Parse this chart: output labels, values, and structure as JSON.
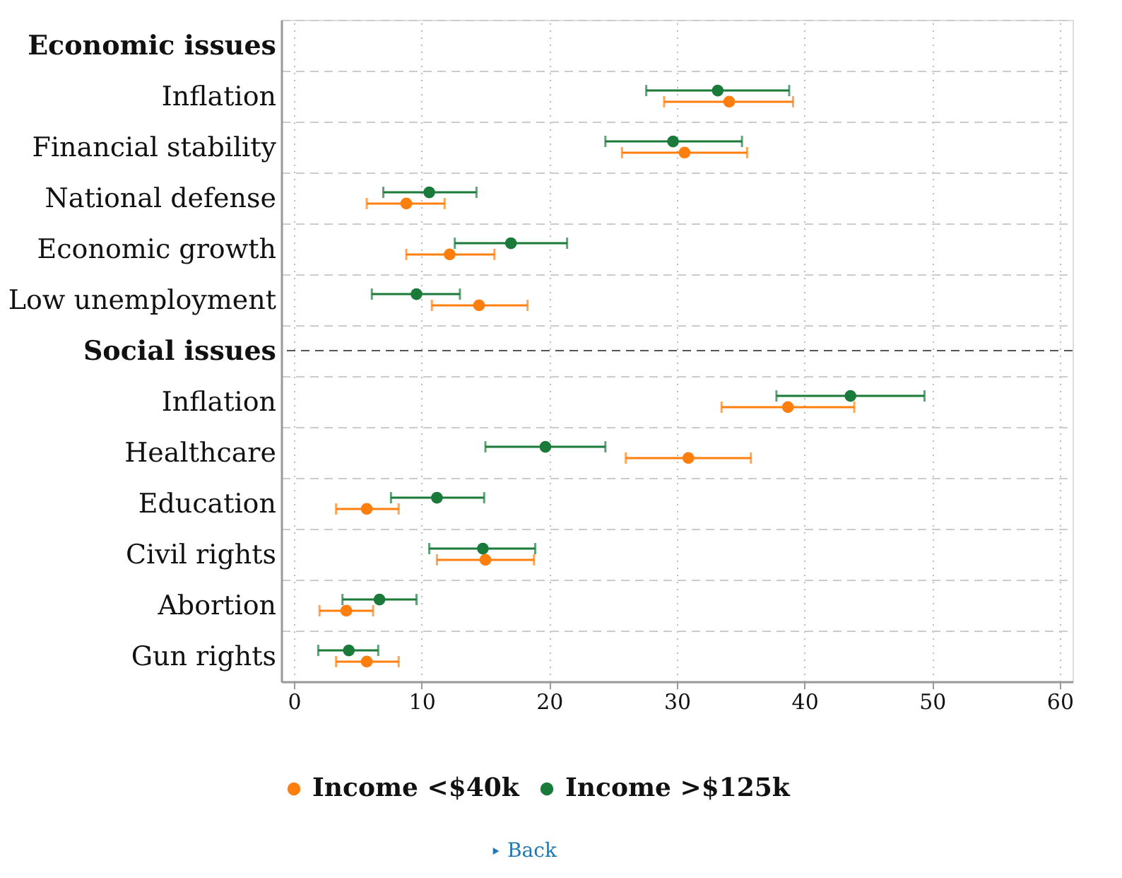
{
  "chart_data": {
    "type": "scatter",
    "orientation": "horizontal",
    "categories": [
      "Economic issues",
      "Inflation",
      "Financial stability",
      "National defense",
      "Economic growth",
      "Low unemployment",
      "Social issues",
      "Inflation",
      "Healthcare",
      "Education",
      "Civil rights",
      "Abortion",
      "Gun rights"
    ],
    "series": [
      {
        "name": "Income <$40k",
        "color": "#ff7f0e",
        "values": [
          null,
          34.1,
          30.6,
          8.8,
          12.2,
          14.5,
          null,
          38.7,
          30.9,
          5.7,
          15.0,
          4.1,
          5.7
        ],
        "errors": [
          null,
          [
            29.0,
            39.1
          ],
          [
            25.7,
            35.5
          ],
          [
            5.7,
            11.8
          ],
          [
            8.8,
            15.7
          ],
          [
            10.8,
            18.3
          ],
          null,
          [
            33.5,
            43.9
          ],
          [
            26.0,
            35.8
          ],
          [
            3.3,
            8.2
          ],
          [
            11.2,
            18.8
          ],
          [
            2.0,
            6.2
          ],
          [
            3.3,
            8.2
          ]
        ]
      },
      {
        "name": "Income >$125k",
        "color": "#1a7a3a",
        "values": [
          null,
          33.2,
          29.7,
          10.6,
          17.0,
          9.6,
          null,
          43.6,
          19.7,
          11.2,
          14.8,
          6.7,
          4.3
        ],
        "errors": [
          null,
          [
            27.6,
            38.8
          ],
          [
            24.4,
            35.1
          ],
          [
            7.0,
            14.3
          ],
          [
            12.6,
            21.4
          ],
          [
            6.1,
            13.0
          ],
          null,
          [
            37.8,
            49.4
          ],
          [
            15.0,
            24.4
          ],
          [
            7.6,
            14.9
          ],
          [
            10.6,
            18.9
          ],
          [
            3.8,
            9.6
          ],
          [
            1.9,
            6.6
          ]
        ]
      }
    ],
    "xlim": [
      -1,
      61
    ],
    "xticks": [
      0,
      10,
      20,
      30,
      40,
      50,
      60
    ],
    "grid": true,
    "legend": "bottom",
    "marker": "circle",
    "ref_lines": [
      {
        "axis": "y",
        "value": "Social issues",
        "color": "#555555",
        "line_style": "dashed"
      }
    ],
    "annotations": [
      "Back"
    ]
  }
}
